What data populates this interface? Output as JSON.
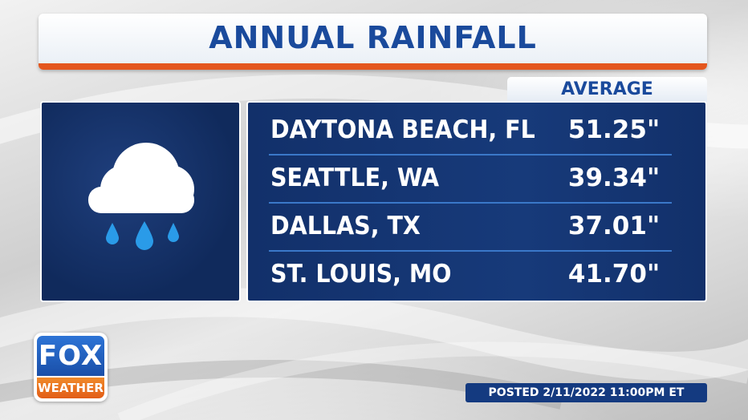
{
  "title": "ANNUAL RAINFALL",
  "column_header": "AVERAGE",
  "rows": [
    {
      "city": "DAYTONA BEACH, FL",
      "value": "51.25\""
    },
    {
      "city": "SEATTLE, WA",
      "value": "39.34\""
    },
    {
      "city": "DALLAS, TX",
      "value": "37.01\""
    },
    {
      "city": "ST. LOUIS, MO",
      "value": "41.70\""
    }
  ],
  "weather_icon": "rain-cloud-icon",
  "logo": {
    "top": "FOX",
    "bottom": "WEATHER"
  },
  "posted": "POSTED 2/11/2022 11:00PM ET",
  "colors": {
    "title_text": "#1a4a9c",
    "accent_stripe": "#e4571e",
    "panel": "#12306a",
    "divider": "#3a78c9",
    "logo_blue": "#2d74d6",
    "logo_orange": "#e25d17",
    "raindrop": "#2a9be8"
  }
}
